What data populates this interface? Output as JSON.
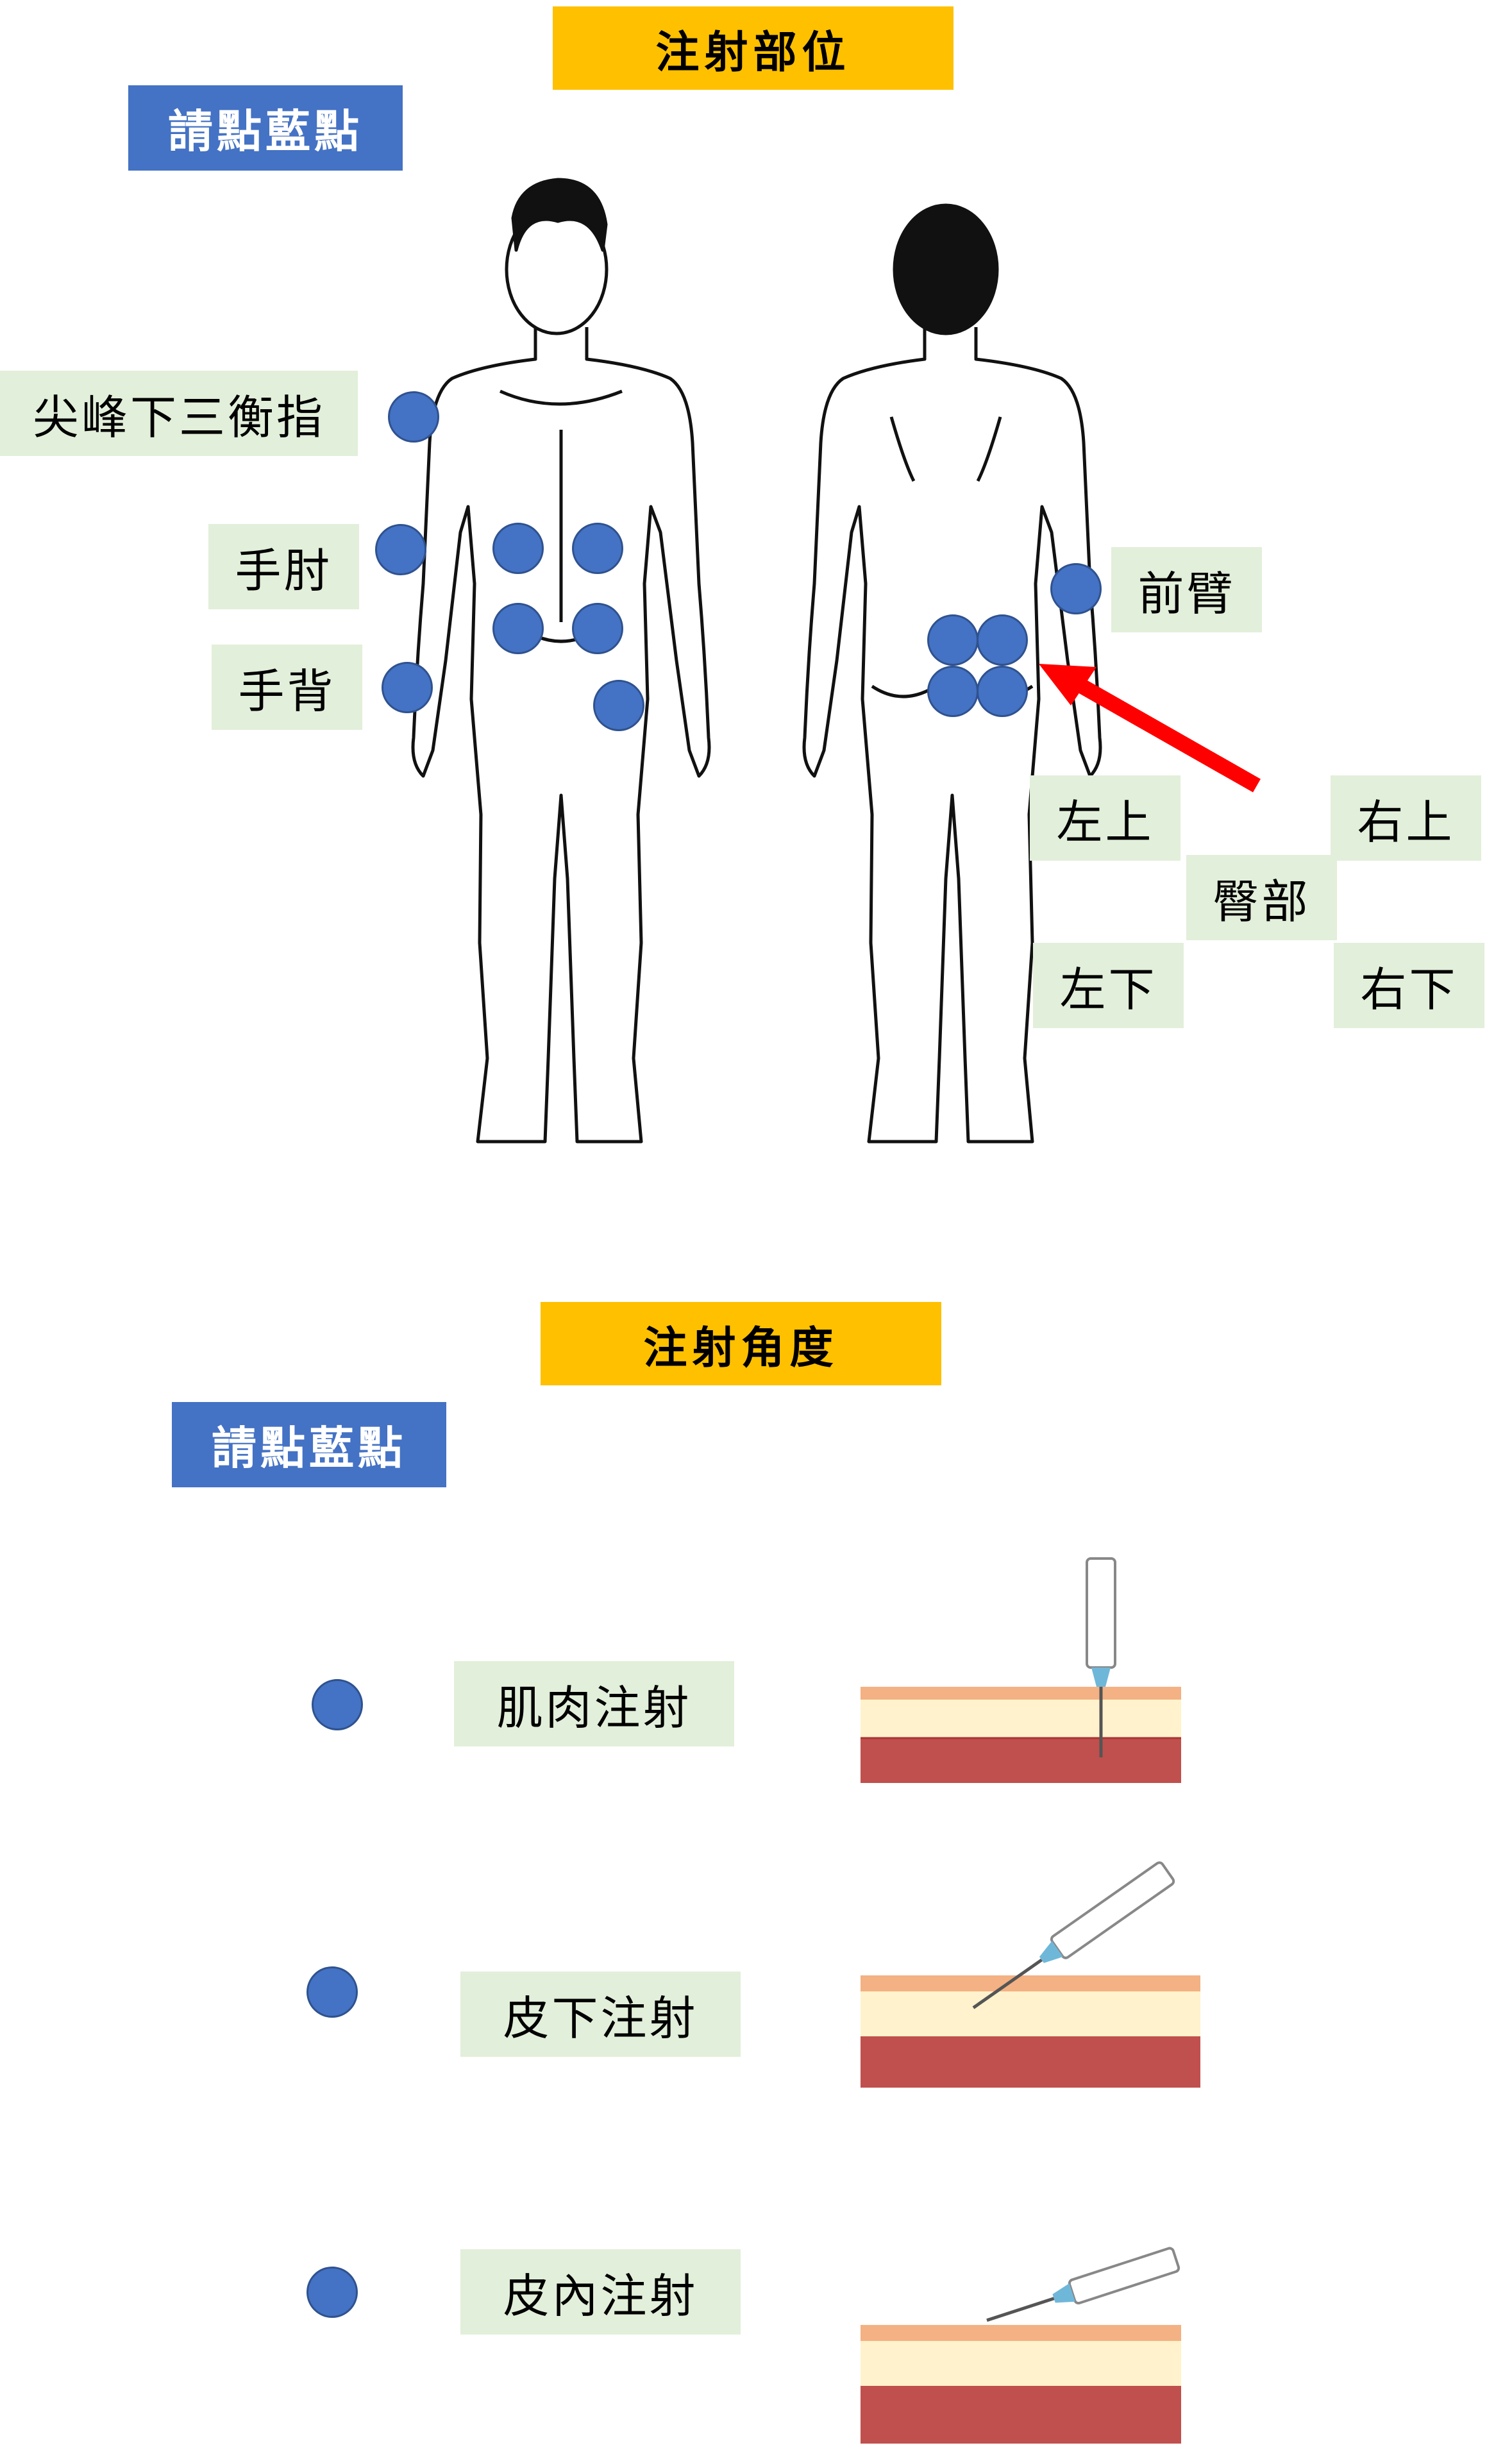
{
  "sections": {
    "site": {
      "title": "注射部位",
      "button": "請點藍點"
    },
    "angle": {
      "title": "注射角度",
      "button": "請點藍點"
    }
  },
  "site_labels": {
    "deltoid": "尖峰下三衡指",
    "elbow": "手肘",
    "hand_back": "手背",
    "forearm": "前臂",
    "upper_left": "左上",
    "upper_right": "右上",
    "buttock": "臀部",
    "lower_left": "左下",
    "lower_right": "右下"
  },
  "angle_labels": {
    "im": "肌肉注射",
    "sc": "皮下注射",
    "id": "皮內注射"
  },
  "colors": {
    "title_bg": "#ffc000",
    "button_bg": "#4472c4",
    "label_bg": "#e2efda",
    "dot": "#4472c4",
    "arrow": "#ff0000"
  }
}
